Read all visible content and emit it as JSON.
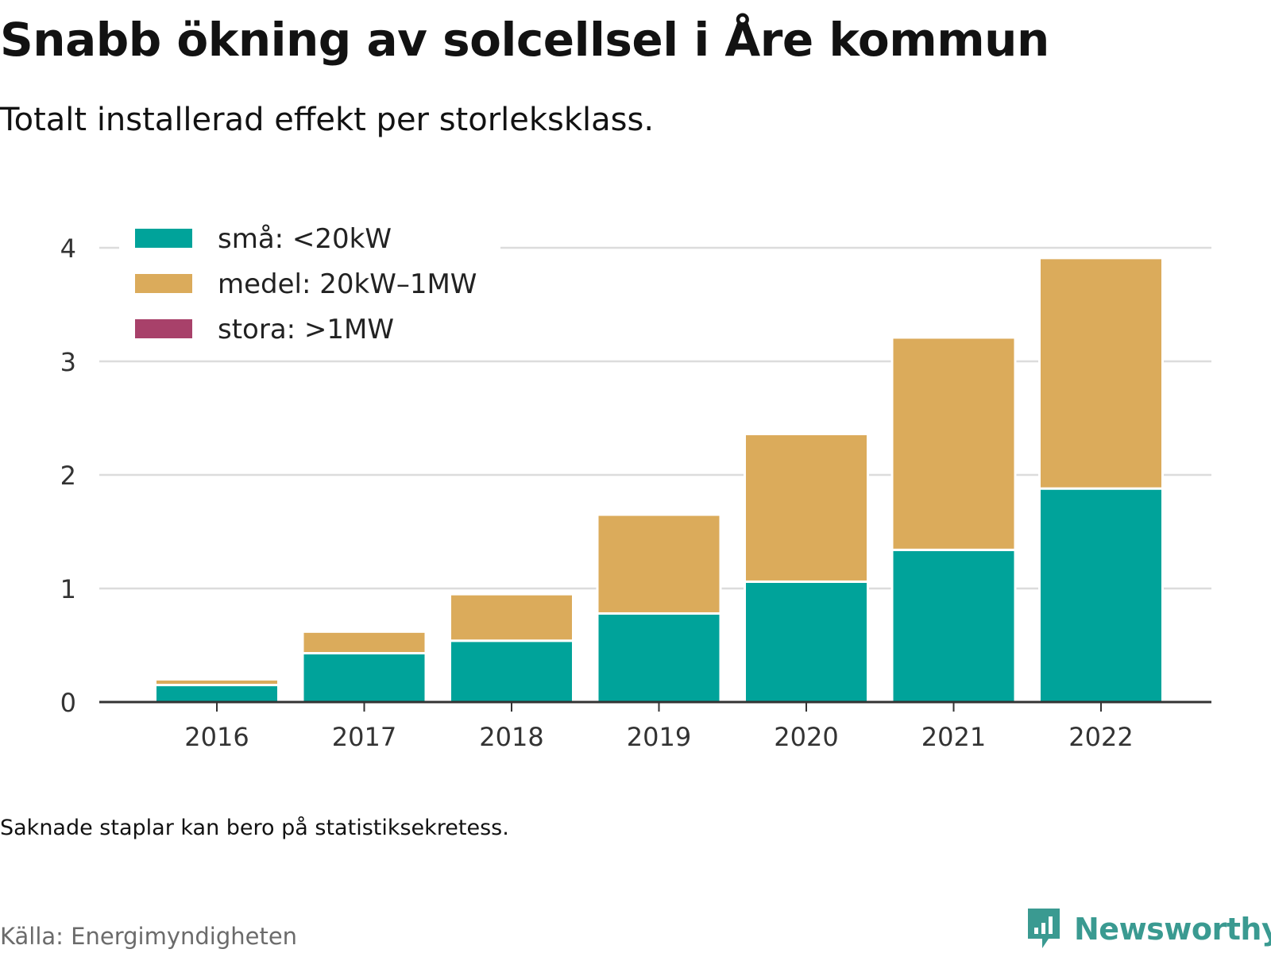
{
  "header": {
    "title": "Snabb ökning av solcellsel i Åre kommun",
    "subtitle": "Totalt installerad effekt per storleksklass."
  },
  "footer": {
    "note": "Saknade staplar kan bero på statistiksekretess.",
    "source": "Källa: Energimyndigheten",
    "brand": "Newsworthy"
  },
  "colors": {
    "sma": "#00a39a",
    "medel": "#dbab5b",
    "stora": "#a8416a",
    "brand": "#3a9a91"
  },
  "chart_data": {
    "type": "bar",
    "stacked": true,
    "title": "Snabb ökning av solcellsel i Åre kommun",
    "subtitle": "Totalt installerad effekt per storleksklass.",
    "categories": [
      "2016",
      "2017",
      "2018",
      "2019",
      "2020",
      "2021",
      "2022"
    ],
    "series": [
      {
        "name": "små: <20kW",
        "color": "#00a39a",
        "values": [
          0.15,
          0.43,
          0.54,
          0.78,
          1.06,
          1.34,
          1.88
        ]
      },
      {
        "name": "medel: 20kW–1MW",
        "color": "#dbab5b",
        "values": [
          0.05,
          0.19,
          0.41,
          0.87,
          1.3,
          1.87,
          2.03
        ]
      },
      {
        "name": "stora: >1MW",
        "color": "#a8416a",
        "values": [
          0,
          0,
          0,
          0,
          0,
          0,
          0
        ]
      }
    ],
    "ylim": [
      0,
      4
    ],
    "yticks": [
      "0",
      "1",
      "2",
      "3",
      "4"
    ],
    "xlabel": "",
    "ylabel": "",
    "grid": true,
    "legend": "top-left"
  }
}
